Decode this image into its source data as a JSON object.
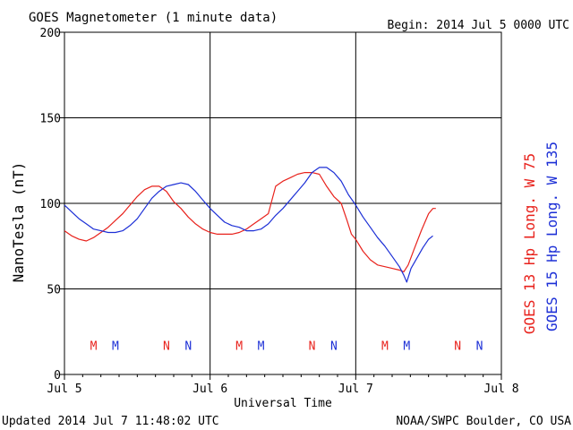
{
  "header": {
    "title": "GOES Magnetometer (1 minute data)",
    "begin": "Begin:  2014 Jul 5 0000 UTC"
  },
  "footer": {
    "updated": "Updated 2014 Jul  7 11:48:02 UTC",
    "source": "NOAA/SWPC Boulder, CO USA"
  },
  "colors": {
    "goes13": "#e8221c",
    "goes15": "#1c2fd6",
    "axis": "#000000"
  },
  "chart_data": {
    "type": "line",
    "title": "GOES Magnetometer (1 minute data)",
    "xlabel": "Universal Time",
    "ylabel": "NanoTesla (nT)",
    "x_unit": "days since Jul 5 0000 UTC",
    "xlim": [
      0,
      3
    ],
    "ylim": [
      0,
      200
    ],
    "y_ticks": [
      0,
      50,
      100,
      150,
      200
    ],
    "x_ticks": [
      {
        "x": 0,
        "label": "Jul 5"
      },
      {
        "x": 1,
        "label": "Jul 6"
      },
      {
        "x": 2,
        "label": "Jul 7"
      },
      {
        "x": 3,
        "label": "Jul 8"
      }
    ],
    "grid": true,
    "series": [
      {
        "name": "GOES 13 Hp  Long. W 75",
        "color": "#e8221c",
        "points": [
          [
            0.0,
            84
          ],
          [
            0.05,
            81
          ],
          [
            0.1,
            79
          ],
          [
            0.15,
            78
          ],
          [
            0.2,
            80
          ],
          [
            0.25,
            83
          ],
          [
            0.3,
            86
          ],
          [
            0.35,
            90
          ],
          [
            0.4,
            94
          ],
          [
            0.45,
            99
          ],
          [
            0.5,
            104
          ],
          [
            0.55,
            108
          ],
          [
            0.6,
            110
          ],
          [
            0.65,
            110
          ],
          [
            0.7,
            107
          ],
          [
            0.75,
            101
          ],
          [
            0.8,
            97
          ],
          [
            0.85,
            92
          ],
          [
            0.9,
            88
          ],
          [
            0.95,
            85
          ],
          [
            1.0,
            83
          ],
          [
            1.05,
            82
          ],
          [
            1.1,
            82
          ],
          [
            1.15,
            82
          ],
          [
            1.2,
            83
          ],
          [
            1.25,
            85
          ],
          [
            1.3,
            88
          ],
          [
            1.35,
            91
          ],
          [
            1.4,
            94
          ],
          [
            1.45,
            110
          ],
          [
            1.5,
            113
          ],
          [
            1.55,
            115
          ],
          [
            1.6,
            117
          ],
          [
            1.65,
            118
          ],
          [
            1.7,
            118
          ],
          [
            1.75,
            117
          ],
          [
            1.8,
            110
          ],
          [
            1.85,
            104
          ],
          [
            1.9,
            100
          ],
          [
            1.94,
            90
          ],
          [
            1.97,
            82
          ],
          [
            2.0,
            79
          ],
          [
            2.05,
            72
          ],
          [
            2.1,
            67
          ],
          [
            2.15,
            64
          ],
          [
            2.2,
            63
          ],
          [
            2.25,
            62
          ],
          [
            2.3,
            61
          ],
          [
            2.33,
            60
          ],
          [
            2.36,
            64
          ],
          [
            2.4,
            73
          ],
          [
            2.45,
            84
          ],
          [
            2.5,
            94
          ],
          [
            2.53,
            97
          ],
          [
            2.55,
            97
          ]
        ],
        "markers": [
          {
            "label": "M",
            "x": 0.2
          },
          {
            "label": "N",
            "x": 0.7
          },
          {
            "label": "M",
            "x": 1.2
          },
          {
            "label": "N",
            "x": 1.7
          },
          {
            "label": "M",
            "x": 2.2
          },
          {
            "label": "N",
            "x": 2.7
          }
        ]
      },
      {
        "name": "GOES 15 Hp  Long. W 135",
        "color": "#1c2fd6",
        "points": [
          [
            0.0,
            99
          ],
          [
            0.05,
            95
          ],
          [
            0.1,
            91
          ],
          [
            0.15,
            88
          ],
          [
            0.2,
            85
          ],
          [
            0.25,
            84
          ],
          [
            0.3,
            83
          ],
          [
            0.35,
            83
          ],
          [
            0.4,
            84
          ],
          [
            0.45,
            87
          ],
          [
            0.5,
            91
          ],
          [
            0.55,
            97
          ],
          [
            0.6,
            103
          ],
          [
            0.65,
            107
          ],
          [
            0.7,
            110
          ],
          [
            0.75,
            111
          ],
          [
            0.8,
            112
          ],
          [
            0.85,
            111
          ],
          [
            0.9,
            107
          ],
          [
            0.95,
            102
          ],
          [
            1.0,
            97
          ],
          [
            1.05,
            93
          ],
          [
            1.1,
            89
          ],
          [
            1.15,
            87
          ],
          [
            1.2,
            86
          ],
          [
            1.25,
            84
          ],
          [
            1.3,
            84
          ],
          [
            1.35,
            85
          ],
          [
            1.4,
            88
          ],
          [
            1.45,
            93
          ],
          [
            1.5,
            97
          ],
          [
            1.55,
            102
          ],
          [
            1.6,
            107
          ],
          [
            1.65,
            112
          ],
          [
            1.7,
            118
          ],
          [
            1.75,
            121
          ],
          [
            1.8,
            121
          ],
          [
            1.85,
            118
          ],
          [
            1.9,
            113
          ],
          [
            1.95,
            105
          ],
          [
            2.0,
            99
          ],
          [
            2.05,
            92
          ],
          [
            2.1,
            86
          ],
          [
            2.15,
            80
          ],
          [
            2.2,
            75
          ],
          [
            2.25,
            69
          ],
          [
            2.3,
            63
          ],
          [
            2.33,
            58
          ],
          [
            2.35,
            54
          ],
          [
            2.38,
            62
          ],
          [
            2.42,
            68
          ],
          [
            2.46,
            74
          ],
          [
            2.5,
            79
          ],
          [
            2.53,
            81
          ]
        ],
        "markers": [
          {
            "label": "M",
            "x": 0.35
          },
          {
            "label": "N",
            "x": 0.85
          },
          {
            "label": "M",
            "x": 1.35
          },
          {
            "label": "N",
            "x": 1.85
          },
          {
            "label": "M",
            "x": 2.35
          },
          {
            "label": "N",
            "x": 2.85
          }
        ]
      }
    ],
    "marker_level": 17
  }
}
